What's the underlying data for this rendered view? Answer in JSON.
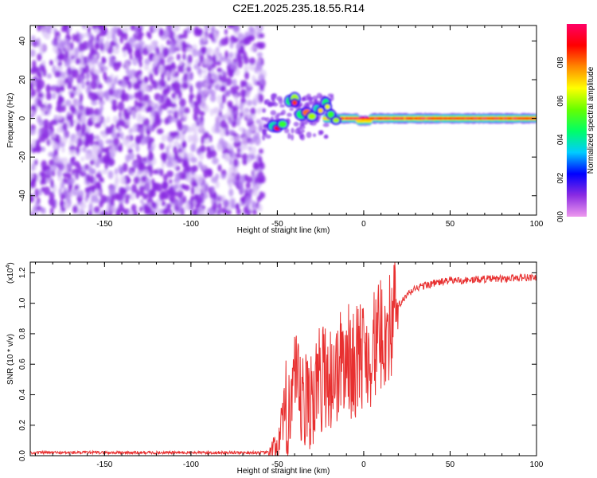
{
  "title": "C2E1.2025.235.18.55.R14",
  "chart_data": [
    {
      "type": "heatmap",
      "xlabel": "Height of straight line (km)",
      "ylabel": "Frequency (Hz)",
      "xlim": [
        -193,
        100
      ],
      "ylim": [
        -50,
        48
      ],
      "xticks": [
        -150,
        -100,
        -50,
        0,
        50,
        100
      ],
      "yticks": [
        -40,
        -20,
        0,
        20,
        40
      ],
      "colorbar": {
        "label": "Normalized spectral amplitude",
        "range": [
          0.0,
          1.0
        ],
        "ticks": [
          "0.0",
          "0.2",
          "0.4",
          "0.6",
          "0.8"
        ],
        "colormap": [
          "#ee99ee",
          "#8a2be2",
          "#0000ff",
          "#00ccff",
          "#00ff66",
          "#66ff00",
          "#ffff00",
          "#ff8800",
          "#ff0000",
          "#ff0066"
        ]
      },
      "regions": [
        {
          "x_range": [
            -193,
            -58
          ],
          "freq_range": [
            -50,
            48
          ],
          "description": "broadband noise",
          "amplitude": 0.15
        },
        {
          "x_range": [
            -58,
            -20
          ],
          "freq_range": [
            -10,
            13
          ],
          "description": "scattered signal",
          "amplitude": 0.5
        },
        {
          "x_range": [
            -20,
            100
          ],
          "freq_center": 0,
          "freq_halfwidth": 2.5,
          "description": "steady tone",
          "amplitude": 0.9
        }
      ]
    },
    {
      "type": "line",
      "xlabel": "Height of straight line (km)",
      "ylabel": "SNR (10 * v/v)",
      "yscale_note": "(x10^4)",
      "xlim": [
        -193,
        100
      ],
      "ylim": [
        0,
        1.27
      ],
      "xticks": [
        -150,
        -100,
        -50,
        0,
        50,
        100
      ],
      "yticks": [
        "0.0",
        "0.2",
        "0.4",
        "0.6",
        "0.8",
        "1.0",
        "1.2"
      ],
      "series": [
        {
          "name": "SNR",
          "color": "#e83030",
          "x": [
            -193,
            -55,
            -50,
            -46,
            -43,
            -40,
            -37,
            -34,
            -31,
            -28,
            -25,
            -22,
            -19,
            -16,
            -13,
            -10,
            -7,
            -4,
            -1,
            2,
            5,
            8,
            11,
            14,
            17,
            20,
            25,
            30,
            40,
            50,
            60,
            70,
            80,
            90,
            100
          ],
          "y": [
            0.02,
            0.02,
            0.05,
            0.2,
            0.4,
            0.45,
            0.35,
            0.3,
            0.4,
            0.42,
            0.5,
            0.55,
            0.5,
            0.55,
            0.6,
            0.65,
            0.6,
            0.62,
            0.68,
            0.65,
            0.7,
            0.75,
            0.8,
            0.82,
            0.9,
            0.98,
            1.05,
            1.1,
            1.13,
            1.15,
            1.15,
            1.16,
            1.16,
            1.17,
            1.17
          ]
        }
      ]
    }
  ]
}
